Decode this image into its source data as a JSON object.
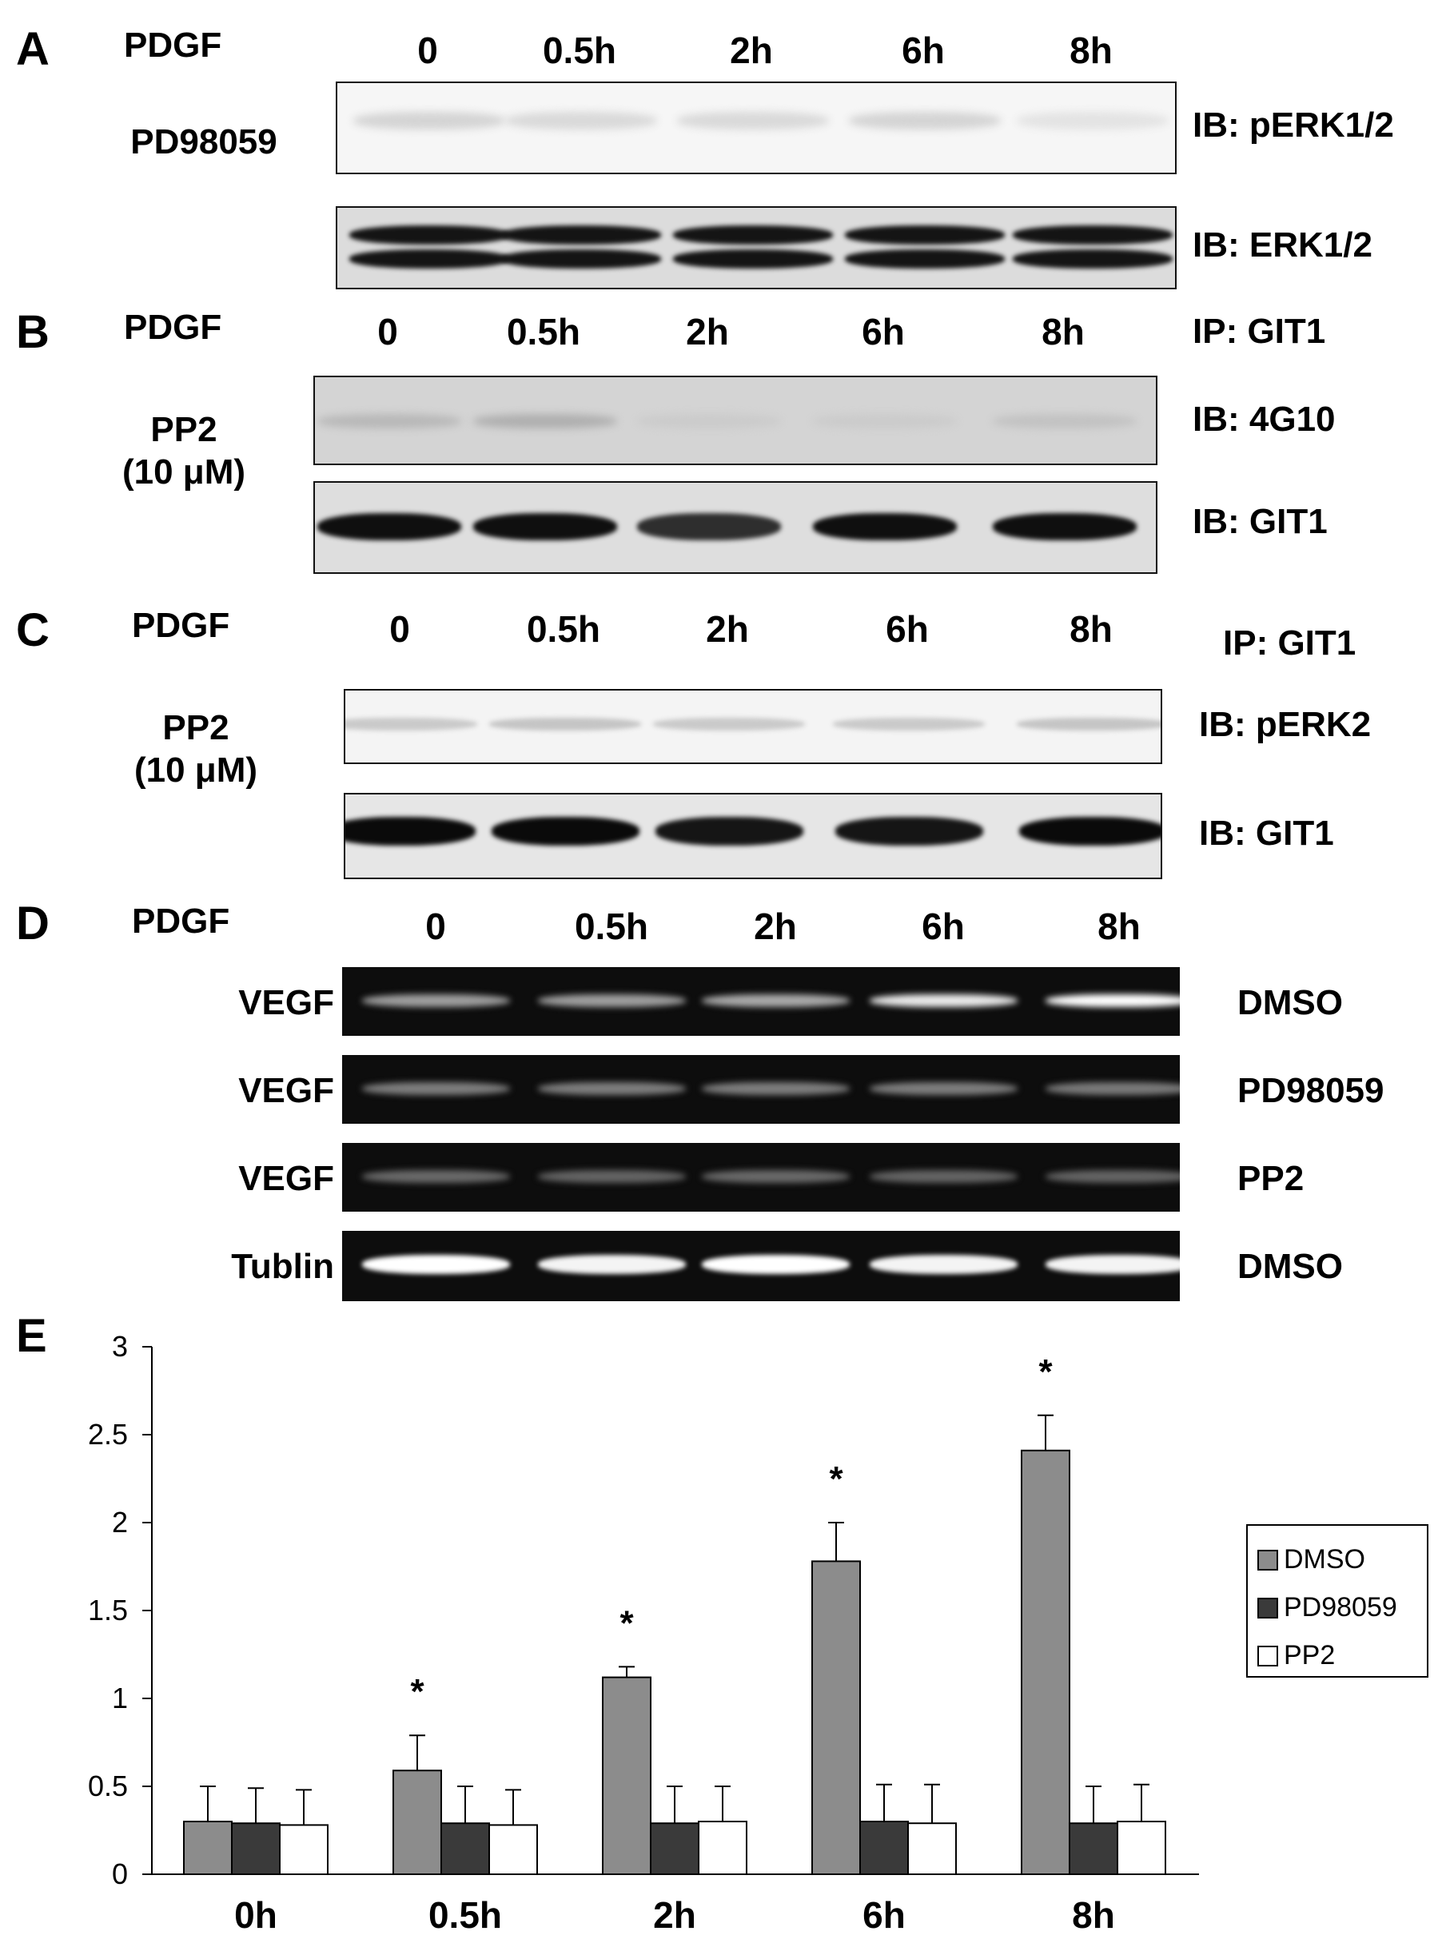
{
  "panels": {
    "A": {
      "letter": "A",
      "treatment_label": "PDGF",
      "lanes": [
        "0",
        "0.5h",
        "2h",
        "6h",
        "8h"
      ],
      "inhibitor_label": "PD98059",
      "blots": [
        "IB: pERK1/2",
        "IB: ERK1/2"
      ],
      "band_intensity": {
        "pERK1/2": [
          0.35,
          0.3,
          0.3,
          0.35,
          0.2
        ],
        "ERK1/2": [
          1,
          1,
          1,
          1,
          1
        ]
      }
    },
    "B": {
      "letter": "B",
      "treatment_label": "PDGF",
      "lanes": [
        "0",
        "0.5h",
        "2h",
        "6h",
        "8h"
      ],
      "ip_label": "IP: GIT1",
      "inhibitor_label": "PP2",
      "inhibitor_conc": "(10 μM)",
      "blots": [
        "IB: 4G10",
        "IB: GIT1"
      ],
      "band_intensity": {
        "4G10": [
          0.3,
          0.4,
          0.1,
          0.1,
          0.2
        ],
        "GIT1": [
          1,
          1,
          0.85,
          1,
          1
        ]
      }
    },
    "C": {
      "letter": "C",
      "treatment_label": "PDGF",
      "lanes": [
        "0",
        "0.5h",
        "2h",
        "6h",
        "8h"
      ],
      "ip_label": "IP: GIT1",
      "inhibitor_label": "PP2",
      "inhibitor_conc": "(10 μM)",
      "blots": [
        "IB: pERK2",
        "IB: GIT1"
      ],
      "band_intensity": {
        "pERK2": [
          0.4,
          0.45,
          0.4,
          0.4,
          0.45
        ],
        "GIT1": [
          1,
          1,
          0.95,
          0.95,
          1
        ]
      }
    },
    "D": {
      "letter": "D",
      "treatment_label": "PDGF",
      "lanes": [
        "0",
        "0.5h",
        "2h",
        "6h",
        "8h"
      ],
      "rows": [
        {
          "left": "VEGF",
          "right": "DMSO",
          "intensity": [
            0.55,
            0.55,
            0.6,
            0.9,
            1
          ]
        },
        {
          "left": "VEGF",
          "right": "PD98059",
          "intensity": [
            0.4,
            0.4,
            0.4,
            0.4,
            0.38
          ]
        },
        {
          "left": "VEGF",
          "right": "PP2",
          "intensity": [
            0.3,
            0.28,
            0.3,
            0.28,
            0.28
          ]
        },
        {
          "left": "Tublin",
          "right": "DMSO",
          "intensity": [
            1,
            0.95,
            1,
            0.95,
            0.95
          ]
        }
      ]
    },
    "E": {
      "letter": "E",
      "chart_data": {
        "type": "bar",
        "categories": [
          "0h",
          "0.5h",
          "2h",
          "6h",
          "8h"
        ],
        "series": [
          {
            "name": "DMSO",
            "values": [
              0.3,
              0.59,
              1.12,
              1.78,
              2.41
            ],
            "errors": [
              0.2,
              0.2,
              0.06,
              0.22,
              0.2
            ],
            "color": "#8c8c8c"
          },
          {
            "name": "PD98059",
            "values": [
              0.29,
              0.29,
              0.29,
              0.3,
              0.29
            ],
            "errors": [
              0.2,
              0.21,
              0.21,
              0.21,
              0.21
            ],
            "color": "#3a3a3a"
          },
          {
            "name": "PP2",
            "values": [
              0.28,
              0.28,
              0.3,
              0.29,
              0.3
            ],
            "errors": [
              0.2,
              0.2,
              0.2,
              0.22,
              0.21
            ],
            "color": "#ffffff"
          }
        ],
        "significance": [
          "",
          "*",
          "*",
          "*",
          "*"
        ],
        "y_ticks": [
          "0",
          "0.5",
          "1",
          "1.5",
          "2",
          "2.5",
          "3"
        ],
        "ylim": [
          0,
          3
        ],
        "legend_position": "right",
        "xlabel": "",
        "ylabel": ""
      }
    }
  }
}
